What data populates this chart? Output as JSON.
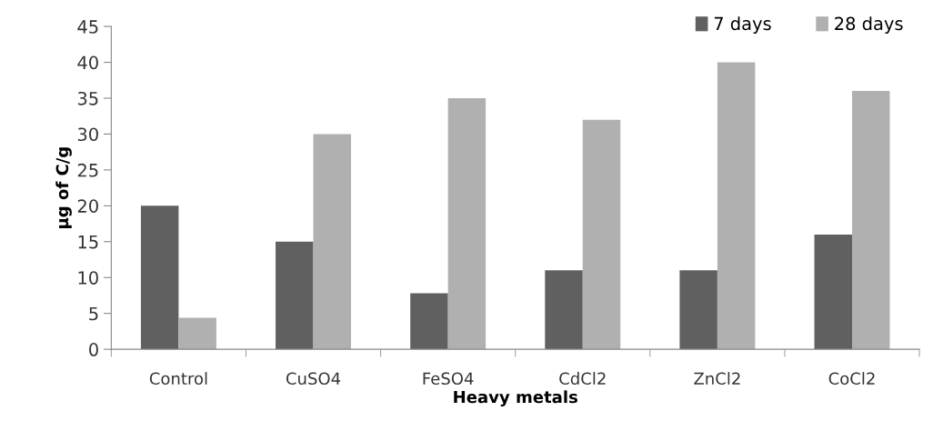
{
  "chart_data": {
    "type": "bar",
    "xlabel": "Heavy metals",
    "ylabel": "µg of C/g",
    "categories": [
      "Control",
      "CuSO4",
      "FeSO4",
      "CdCl2",
      "ZnCl2",
      "CoCl2"
    ],
    "series": [
      {
        "name": "7 days",
        "color": "#606060",
        "values": [
          20,
          15,
          7.8,
          11,
          11,
          16
        ]
      },
      {
        "name": "28 days",
        "color": "#b0b0b0",
        "values": [
          4.4,
          30,
          35,
          32,
          40,
          36
        ]
      }
    ],
    "ylim": [
      0,
      45
    ],
    "yticks": [
      0,
      5,
      10,
      15,
      20,
      25,
      30,
      35,
      40,
      45
    ],
    "grid": false,
    "legend": "top right"
  }
}
